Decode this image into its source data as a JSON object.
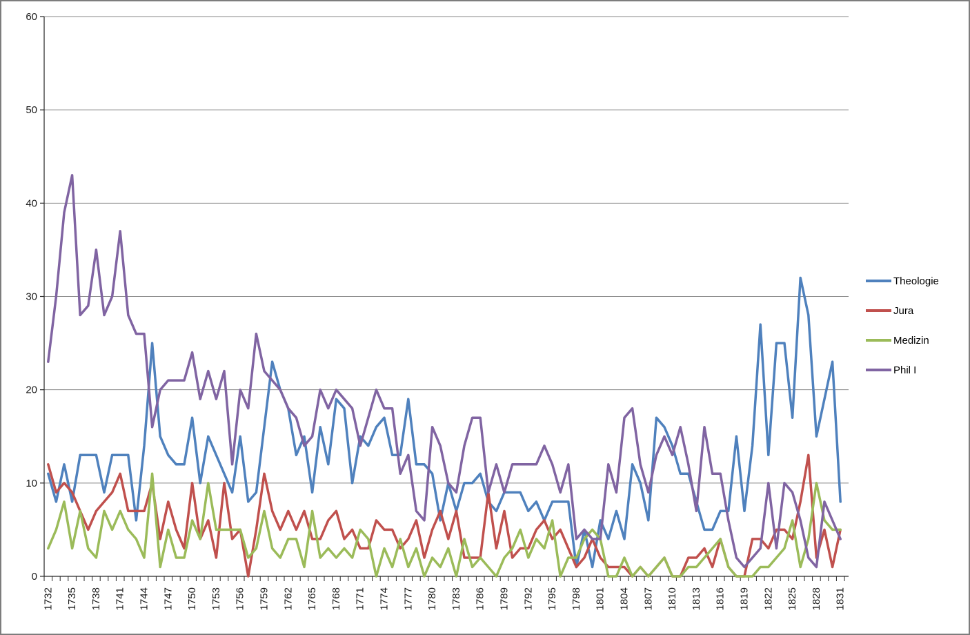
{
  "chart_data": {
    "type": "line",
    "title": "",
    "xlabel": "",
    "ylabel": "",
    "x_start": 1732,
    "x_end": 1831,
    "x_tick_interval": 3,
    "x_tick_labels": [
      "1732",
      "1735",
      "1738",
      "1741",
      "1744",
      "1747",
      "1750",
      "1753",
      "1756",
      "1759",
      "1762",
      "1765",
      "1768",
      "1771",
      "1774",
      "1777",
      "1780",
      "1783",
      "1786",
      "1789",
      "1792",
      "1795",
      "1798",
      "1801",
      "1804",
      "1807",
      "1810",
      "1813",
      "1816",
      "1819",
      "1822",
      "1825",
      "1828",
      "1831"
    ],
    "y_ticks": [
      0,
      10,
      20,
      30,
      40,
      50,
      60
    ],
    "ylim": [
      0,
      60
    ],
    "grid": "horizontal",
    "legend_position": "right",
    "series": [
      {
        "name": "Theologie",
        "color": "#4F81BD",
        "values": [
          11,
          8,
          12,
          8,
          13,
          13,
          13,
          9,
          13,
          13,
          13,
          6,
          14,
          25,
          15,
          13,
          12,
          12,
          17,
          10,
          15,
          13,
          11,
          9,
          15,
          8,
          9,
          16,
          23,
          20,
          18,
          13,
          15,
          9,
          16,
          12,
          19,
          18,
          10,
          15,
          14,
          16,
          17,
          13,
          13,
          19,
          12,
          12,
          11,
          6,
          10,
          7,
          10,
          10,
          11,
          8,
          7,
          9,
          9,
          9,
          7,
          8,
          6,
          8,
          8,
          8,
          1,
          5,
          1,
          6,
          4,
          7,
          4,
          12,
          10,
          6,
          17,
          16,
          14,
          11,
          11,
          8,
          5,
          5,
          7,
          7,
          15,
          7,
          14,
          27,
          13,
          25,
          25,
          17,
          32,
          28,
          15,
          19,
          23,
          8
        ]
      },
      {
        "name": "Jura",
        "color": "#C0504D",
        "values": [
          12,
          9,
          10,
          9,
          7,
          5,
          7,
          8,
          9,
          11,
          7,
          7,
          7,
          10,
          4,
          8,
          5,
          3,
          10,
          4,
          6,
          2,
          10,
          4,
          5,
          0,
          5,
          11,
          7,
          5,
          7,
          5,
          7,
          4,
          4,
          6,
          7,
          4,
          5,
          3,
          3,
          6,
          5,
          5,
          3,
          4,
          6,
          2,
          5,
          7,
          4,
          7,
          2,
          2,
          2,
          9,
          3,
          7,
          2,
          3,
          3,
          5,
          6,
          4,
          5,
          3,
          1,
          2,
          4,
          2,
          1,
          1,
          1,
          0,
          1,
          0,
          1,
          2,
          0,
          0,
          2,
          2,
          3,
          1,
          4,
          1,
          0,
          0,
          4,
          4,
          3,
          5,
          5,
          4,
          8,
          13,
          2,
          5,
          1,
          5
        ]
      },
      {
        "name": "Medizin",
        "color": "#9BBB59",
        "values": [
          3,
          5,
          8,
          3,
          7,
          3,
          2,
          7,
          5,
          7,
          5,
          4,
          2,
          11,
          1,
          5,
          2,
          2,
          6,
          4,
          10,
          5,
          5,
          5,
          5,
          2,
          3,
          7,
          3,
          2,
          4,
          4,
          1,
          7,
          2,
          3,
          2,
          3,
          2,
          5,
          4,
          0,
          3,
          1,
          4,
          1,
          3,
          0,
          2,
          1,
          3,
          0,
          4,
          1,
          2,
          1,
          0,
          2,
          3,
          5,
          2,
          4,
          3,
          6,
          0,
          2,
          2,
          4,
          5,
          4,
          0,
          0,
          2,
          0,
          1,
          0,
          1,
          2,
          0,
          0,
          1,
          1,
          2,
          3,
          4,
          1,
          0,
          0,
          0,
          1,
          1,
          2,
          3,
          6,
          1,
          4,
          10,
          6,
          5,
          5
        ]
      },
      {
        "name": "Phil I",
        "color": "#8064A2",
        "values": [
          23,
          30,
          39,
          43,
          28,
          29,
          35,
          28,
          30,
          37,
          28,
          26,
          26,
          16,
          20,
          21,
          21,
          21,
          24,
          19,
          22,
          19,
          22,
          12,
          20,
          18,
          26,
          22,
          21,
          20,
          18,
          17,
          14,
          15,
          20,
          18,
          20,
          19,
          18,
          14,
          17,
          20,
          18,
          18,
          11,
          13,
          7,
          6,
          16,
          14,
          10,
          9,
          14,
          17,
          17,
          9,
          12,
          9,
          12,
          12,
          12,
          12,
          14,
          12,
          9,
          12,
          4,
          5,
          4,
          4,
          12,
          9,
          17,
          18,
          12,
          9,
          13,
          15,
          13,
          16,
          12,
          7,
          16,
          11,
          11,
          6,
          2,
          1,
          2,
          3,
          10,
          3,
          10,
          9,
          6,
          2,
          1,
          8,
          6,
          4
        ]
      }
    ],
    "axis_color": "#262626",
    "gridline_color": "#878787",
    "tick_label_color": "#1a1a1a"
  }
}
